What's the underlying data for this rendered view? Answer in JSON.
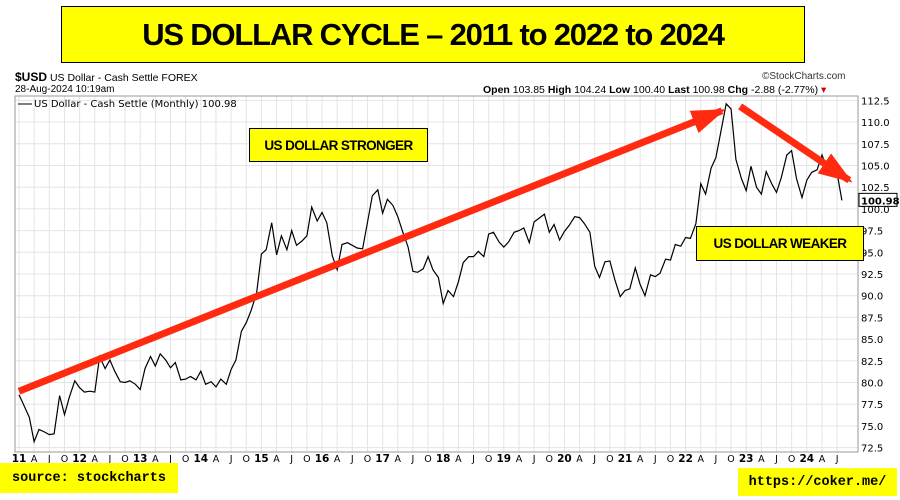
{
  "title": "US DOLLAR CYCLE – 2011 to 2022 to 2024",
  "header": {
    "symbol": "$USD",
    "name": "US Dollar - Cash Settle",
    "exchange": "FOREX",
    "brand": "©StockCharts.com",
    "date": "28-Aug-2024 10:19am",
    "legend": "US Dollar - Cash Settle (Monthly) 100.98",
    "open_label": "Open",
    "open": "103.85",
    "high_label": "High",
    "high": "104.24",
    "low_label": "Low",
    "low": "100.40",
    "last_label": "Last",
    "last": "100.98",
    "chg_label": "Chg",
    "chg": "-2.88 (-2.77%)"
  },
  "annotations": {
    "stronger": "US DOLLAR STRONGER",
    "weaker": "US DOLLAR WEAKER",
    "source": "source: stockcharts",
    "url": "https://coker.me/"
  },
  "colors": {
    "line": "#000000",
    "arrow": "#ff2a10",
    "highlight": "#ffff00",
    "grid": "#e4e4e4"
  },
  "chart_data": {
    "type": "line",
    "series": [
      {
        "name": "US Dollar - Cash Settle (Monthly)"
      }
    ],
    "y_range": [
      72,
      113
    ],
    "y_ticks": [
      72.5,
      75.0,
      77.5,
      80.0,
      82.5,
      85.0,
      87.5,
      90.0,
      92.5,
      95.0,
      97.5,
      100.0,
      102.5,
      105.0,
      107.5,
      110.0,
      112.5
    ],
    "y_tick_labels": [
      "72.5",
      "75.0",
      "77.5",
      "80.0",
      "82.5",
      "85.0",
      "87.5",
      "90.0",
      "92.5",
      "95.0",
      "97.5",
      "100.0",
      "102.5",
      "105.0",
      "107.5",
      "110.0",
      "112.5"
    ],
    "x_ticks": [
      {
        "t": 2011.0,
        "label": "11",
        "major": true
      },
      {
        "t": 2011.25,
        "label": "A"
      },
      {
        "t": 2011.5,
        "label": "J"
      },
      {
        "t": 2011.75,
        "label": "O"
      },
      {
        "t": 2012.0,
        "label": "12",
        "major": true
      },
      {
        "t": 2012.25,
        "label": "A"
      },
      {
        "t": 2012.5,
        "label": "J"
      },
      {
        "t": 2012.75,
        "label": "O"
      },
      {
        "t": 2013.0,
        "label": "13",
        "major": true
      },
      {
        "t": 2013.25,
        "label": "A"
      },
      {
        "t": 2013.5,
        "label": "J"
      },
      {
        "t": 2013.75,
        "label": "O"
      },
      {
        "t": 2014.0,
        "label": "14",
        "major": true
      },
      {
        "t": 2014.25,
        "label": "A"
      },
      {
        "t": 2014.5,
        "label": "J"
      },
      {
        "t": 2014.75,
        "label": "O"
      },
      {
        "t": 2015.0,
        "label": "15",
        "major": true
      },
      {
        "t": 2015.25,
        "label": "A"
      },
      {
        "t": 2015.5,
        "label": "J"
      },
      {
        "t": 2015.75,
        "label": "O"
      },
      {
        "t": 2016.0,
        "label": "16",
        "major": true
      },
      {
        "t": 2016.25,
        "label": "A"
      },
      {
        "t": 2016.5,
        "label": "J"
      },
      {
        "t": 2016.75,
        "label": "O"
      },
      {
        "t": 2017.0,
        "label": "17",
        "major": true
      },
      {
        "t": 2017.25,
        "label": "A"
      },
      {
        "t": 2017.5,
        "label": "J"
      },
      {
        "t": 2017.75,
        "label": "O"
      },
      {
        "t": 2018.0,
        "label": "18",
        "major": true
      },
      {
        "t": 2018.25,
        "label": "A"
      },
      {
        "t": 2018.5,
        "label": "J"
      },
      {
        "t": 2018.75,
        "label": "O"
      },
      {
        "t": 2019.0,
        "label": "19",
        "major": true
      },
      {
        "t": 2019.25,
        "label": "A"
      },
      {
        "t": 2019.5,
        "label": "J"
      },
      {
        "t": 2019.75,
        "label": "O"
      },
      {
        "t": 2020.0,
        "label": "20",
        "major": true
      },
      {
        "t": 2020.25,
        "label": "A"
      },
      {
        "t": 2020.5,
        "label": "J"
      },
      {
        "t": 2020.75,
        "label": "O"
      },
      {
        "t": 2021.0,
        "label": "21",
        "major": true
      },
      {
        "t": 2021.25,
        "label": "A"
      },
      {
        "t": 2021.5,
        "label": "J"
      },
      {
        "t": 2021.75,
        "label": "O"
      },
      {
        "t": 2022.0,
        "label": "22",
        "major": true
      },
      {
        "t": 2022.25,
        "label": "A"
      },
      {
        "t": 2022.5,
        "label": "J"
      },
      {
        "t": 2022.75,
        "label": "O"
      },
      {
        "t": 2023.0,
        "label": "23",
        "major": true
      },
      {
        "t": 2023.25,
        "label": "A"
      },
      {
        "t": 2023.5,
        "label": "J"
      },
      {
        "t": 2023.75,
        "label": "O"
      },
      {
        "t": 2024.0,
        "label": "24",
        "major": true
      },
      {
        "t": 2024.25,
        "label": "A"
      },
      {
        "t": 2024.5,
        "label": "J"
      }
    ],
    "points": [
      [
        2011.0,
        78.6
      ],
      [
        2011.08,
        77.4
      ],
      [
        2011.17,
        76.0
      ],
      [
        2011.25,
        73.2
      ],
      [
        2011.33,
        74.6
      ],
      [
        2011.42,
        74.3
      ],
      [
        2011.5,
        74.0
      ],
      [
        2011.58,
        74.1
      ],
      [
        2011.67,
        78.5
      ],
      [
        2011.75,
        76.3
      ],
      [
        2011.83,
        78.3
      ],
      [
        2011.92,
        80.2
      ],
      [
        2012.0,
        79.4
      ],
      [
        2012.08,
        78.9
      ],
      [
        2012.17,
        79.0
      ],
      [
        2012.25,
        78.9
      ],
      [
        2012.33,
        83.0
      ],
      [
        2012.42,
        81.6
      ],
      [
        2012.5,
        82.6
      ],
      [
        2012.58,
        81.3
      ],
      [
        2012.67,
        80.1
      ],
      [
        2012.75,
        80.0
      ],
      [
        2012.83,
        80.2
      ],
      [
        2012.92,
        79.8
      ],
      [
        2013.0,
        79.2
      ],
      [
        2013.08,
        81.6
      ],
      [
        2013.17,
        83.0
      ],
      [
        2013.25,
        81.9
      ],
      [
        2013.33,
        83.3
      ],
      [
        2013.42,
        82.6
      ],
      [
        2013.5,
        81.7
      ],
      [
        2013.58,
        82.3
      ],
      [
        2013.67,
        80.3
      ],
      [
        2013.75,
        80.4
      ],
      [
        2013.83,
        80.7
      ],
      [
        2013.92,
        80.3
      ],
      [
        2014.0,
        81.3
      ],
      [
        2014.08,
        79.8
      ],
      [
        2014.17,
        80.1
      ],
      [
        2014.25,
        79.5
      ],
      [
        2014.33,
        80.4
      ],
      [
        2014.42,
        79.8
      ],
      [
        2014.5,
        81.5
      ],
      [
        2014.58,
        82.6
      ],
      [
        2014.67,
        85.9
      ],
      [
        2014.75,
        86.9
      ],
      [
        2014.83,
        88.3
      ],
      [
        2014.92,
        90.3
      ],
      [
        2015.0,
        94.8
      ],
      [
        2015.08,
        95.3
      ],
      [
        2015.17,
        98.4
      ],
      [
        2015.25,
        94.7
      ],
      [
        2015.33,
        96.9
      ],
      [
        2015.42,
        95.3
      ],
      [
        2015.5,
        97.5
      ],
      [
        2015.58,
        95.8
      ],
      [
        2015.67,
        96.3
      ],
      [
        2015.75,
        96.9
      ],
      [
        2015.83,
        100.2
      ],
      [
        2015.92,
        98.6
      ],
      [
        2016.0,
        99.6
      ],
      [
        2016.08,
        98.4
      ],
      [
        2016.17,
        94.6
      ],
      [
        2016.25,
        93.0
      ],
      [
        2016.33,
        95.9
      ],
      [
        2016.42,
        96.1
      ],
      [
        2016.5,
        95.8
      ],
      [
        2016.58,
        95.5
      ],
      [
        2016.67,
        95.4
      ],
      [
        2016.75,
        98.4
      ],
      [
        2016.83,
        101.5
      ],
      [
        2016.92,
        102.2
      ],
      [
        2017.0,
        99.5
      ],
      [
        2017.08,
        101.1
      ],
      [
        2017.17,
        100.4
      ],
      [
        2017.25,
        99.1
      ],
      [
        2017.33,
        97.4
      ],
      [
        2017.42,
        95.6
      ],
      [
        2017.5,
        92.8
      ],
      [
        2017.58,
        92.7
      ],
      [
        2017.67,
        93.1
      ],
      [
        2017.75,
        94.5
      ],
      [
        2017.83,
        93.0
      ],
      [
        2017.92,
        92.1
      ],
      [
        2018.0,
        89.1
      ],
      [
        2018.08,
        90.6
      ],
      [
        2018.17,
        89.9
      ],
      [
        2018.25,
        91.6
      ],
      [
        2018.33,
        93.8
      ],
      [
        2018.42,
        94.5
      ],
      [
        2018.5,
        94.5
      ],
      [
        2018.58,
        95.1
      ],
      [
        2018.67,
        94.5
      ],
      [
        2018.75,
        97.1
      ],
      [
        2018.83,
        97.3
      ],
      [
        2018.92,
        96.2
      ],
      [
        2019.0,
        95.6
      ],
      [
        2019.08,
        96.2
      ],
      [
        2019.17,
        97.3
      ],
      [
        2019.25,
        97.5
      ],
      [
        2019.33,
        97.8
      ],
      [
        2019.42,
        96.1
      ],
      [
        2019.5,
        98.5
      ],
      [
        2019.58,
        98.9
      ],
      [
        2019.67,
        99.4
      ],
      [
        2019.75,
        97.3
      ],
      [
        2019.83,
        98.2
      ],
      [
        2019.92,
        96.4
      ],
      [
        2020.0,
        97.4
      ],
      [
        2020.08,
        98.1
      ],
      [
        2020.17,
        99.1
      ],
      [
        2020.25,
        99.0
      ],
      [
        2020.33,
        98.3
      ],
      [
        2020.42,
        97.3
      ],
      [
        2020.5,
        93.4
      ],
      [
        2020.58,
        92.1
      ],
      [
        2020.67,
        93.9
      ],
      [
        2020.75,
        94.0
      ],
      [
        2020.83,
        91.9
      ],
      [
        2020.92,
        89.9
      ],
      [
        2021.0,
        90.6
      ],
      [
        2021.08,
        90.8
      ],
      [
        2021.17,
        93.2
      ],
      [
        2021.25,
        91.3
      ],
      [
        2021.33,
        90.0
      ],
      [
        2021.42,
        92.4
      ],
      [
        2021.5,
        92.2
      ],
      [
        2021.58,
        92.6
      ],
      [
        2021.67,
        94.2
      ],
      [
        2021.75,
        94.1
      ],
      [
        2021.83,
        95.9
      ],
      [
        2021.92,
        95.7
      ],
      [
        2022.0,
        96.7
      ],
      [
        2022.08,
        96.6
      ],
      [
        2022.17,
        98.3
      ],
      [
        2022.25,
        102.9
      ],
      [
        2022.33,
        101.7
      ],
      [
        2022.42,
        104.7
      ],
      [
        2022.5,
        105.9
      ],
      [
        2022.58,
        108.8
      ],
      [
        2022.67,
        112.1
      ],
      [
        2022.75,
        111.5
      ],
      [
        2022.83,
        105.7
      ],
      [
        2022.92,
        103.5
      ],
      [
        2023.0,
        102.1
      ],
      [
        2023.08,
        104.9
      ],
      [
        2023.17,
        102.5
      ],
      [
        2023.25,
        101.7
      ],
      [
        2023.33,
        104.3
      ],
      [
        2023.42,
        102.9
      ],
      [
        2023.5,
        101.9
      ],
      [
        2023.58,
        103.6
      ],
      [
        2023.67,
        106.2
      ],
      [
        2023.75,
        106.7
      ],
      [
        2023.83,
        103.5
      ],
      [
        2023.92,
        101.3
      ],
      [
        2024.0,
        103.3
      ],
      [
        2024.08,
        104.2
      ],
      [
        2024.17,
        104.5
      ],
      [
        2024.25,
        106.2
      ],
      [
        2024.33,
        104.7
      ],
      [
        2024.42,
        105.9
      ],
      [
        2024.5,
        104.1
      ],
      [
        2024.58,
        100.98
      ]
    ],
    "trend_arrows": [
      {
        "name": "stronger",
        "from": [
          2011.0,
          79.0
        ],
        "to": [
          2022.6,
          111.3
        ]
      },
      {
        "name": "weaker",
        "from": [
          2022.9,
          111.8
        ],
        "to": [
          2024.7,
          103.3
        ]
      }
    ],
    "last_value_label": "100.98"
  }
}
